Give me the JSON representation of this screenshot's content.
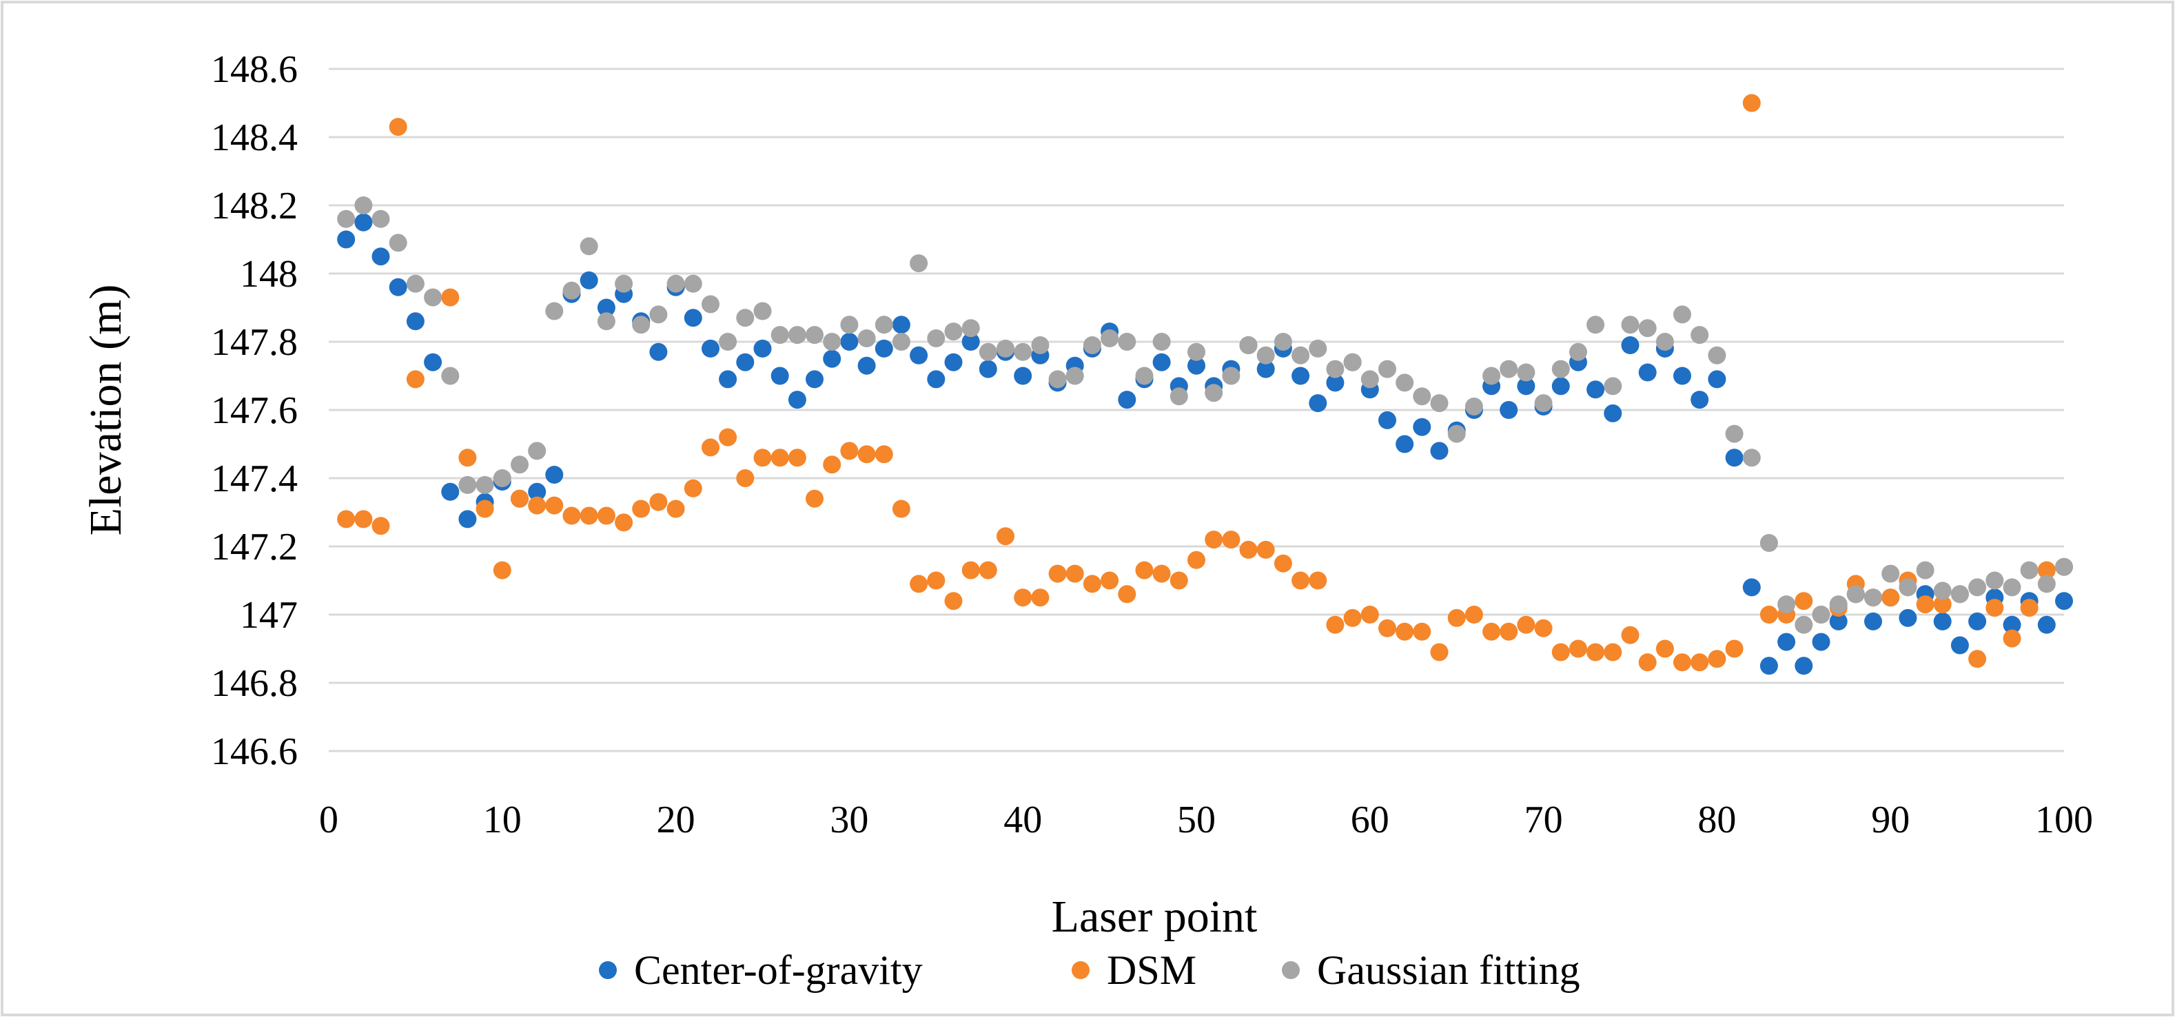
{
  "chart_data": {
    "type": "scatter",
    "title": "",
    "xlabel": "Laser point",
    "ylabel": "Elevation (m)",
    "xlim": [
      0,
      100
    ],
    "ylim": [
      146.6,
      148.6
    ],
    "xticks": [
      "0",
      "10",
      "20",
      "30",
      "40",
      "50",
      "60",
      "70",
      "80",
      "90",
      "100"
    ],
    "yticks": [
      "146.6",
      "146.8",
      "147",
      "147.2",
      "147.4",
      "147.6",
      "147.8",
      "148",
      "148.2",
      "148.4",
      "148.6"
    ],
    "grid": true,
    "legend_position": "bottom",
    "series": [
      {
        "name": "Center-of-gravity",
        "color": "#1f6fc4",
        "points": [
          [
            1,
            148.1
          ],
          [
            2,
            148.15
          ],
          [
            3,
            148.05
          ],
          [
            4,
            147.96
          ],
          [
            5,
            147.86
          ],
          [
            6,
            147.74
          ],
          [
            7,
            147.36
          ],
          [
            8,
            147.28
          ],
          [
            9,
            147.33
          ],
          [
            10,
            147.39
          ],
          [
            11,
            147.34
          ],
          [
            12,
            147.36
          ],
          [
            13,
            147.41
          ],
          [
            14,
            147.94
          ],
          [
            15,
            147.98
          ],
          [
            16,
            147.9
          ],
          [
            17,
            147.94
          ],
          [
            18,
            147.86
          ],
          [
            19,
            147.77
          ],
          [
            20,
            147.96
          ],
          [
            21,
            147.87
          ],
          [
            22,
            147.78
          ],
          [
            23,
            147.69
          ],
          [
            24,
            147.74
          ],
          [
            25,
            147.78
          ],
          [
            26,
            147.7
          ],
          [
            27,
            147.63
          ],
          [
            28,
            147.69
          ],
          [
            29,
            147.75
          ],
          [
            30,
            147.8
          ],
          [
            31,
            147.73
          ],
          [
            32,
            147.78
          ],
          [
            33,
            147.85
          ],
          [
            34,
            147.76
          ],
          [
            35,
            147.69
          ],
          [
            36,
            147.74
          ],
          [
            37,
            147.8
          ],
          [
            38,
            147.72
          ],
          [
            39,
            147.77
          ],
          [
            40,
            147.7
          ],
          [
            41,
            147.76
          ],
          [
            42,
            147.68
          ],
          [
            43,
            147.73
          ],
          [
            44,
            147.78
          ],
          [
            45,
            147.83
          ],
          [
            46,
            147.63
          ],
          [
            47,
            147.69
          ],
          [
            48,
            147.74
          ],
          [
            49,
            147.67
          ],
          [
            50,
            147.73
          ],
          [
            51,
            147.67
          ],
          [
            52,
            147.72
          ],
          [
            53,
            147.79
          ],
          [
            54,
            147.72
          ],
          [
            55,
            147.78
          ],
          [
            56,
            147.7
          ],
          [
            57,
            147.62
          ],
          [
            58,
            147.68
          ],
          [
            59,
            147.74
          ],
          [
            60,
            147.66
          ],
          [
            61,
            147.57
          ],
          [
            62,
            147.5
          ],
          [
            63,
            147.55
          ],
          [
            64,
            147.48
          ],
          [
            65,
            147.54
          ],
          [
            66,
            147.6
          ],
          [
            67,
            147.67
          ],
          [
            68,
            147.6
          ],
          [
            69,
            147.67
          ],
          [
            70,
            147.61
          ],
          [
            71,
            147.67
          ],
          [
            72,
            147.74
          ],
          [
            73,
            147.66
          ],
          [
            74,
            147.59
          ],
          [
            75,
            147.79
          ],
          [
            76,
            147.71
          ],
          [
            77,
            147.78
          ],
          [
            78,
            147.7
          ],
          [
            79,
            147.63
          ],
          [
            80,
            147.69
          ],
          [
            81,
            147.46
          ],
          [
            82,
            147.08
          ],
          [
            83,
            146.85
          ],
          [
            84,
            146.92
          ],
          [
            85,
            146.85
          ],
          [
            86,
            146.92
          ],
          [
            87,
            146.98
          ],
          [
            88,
            147.06
          ],
          [
            89,
            146.98
          ],
          [
            90,
            147.05
          ],
          [
            91,
            146.99
          ],
          [
            92,
            147.06
          ],
          [
            93,
            146.98
          ],
          [
            94,
            146.91
          ],
          [
            95,
            146.98
          ],
          [
            96,
            147.05
          ],
          [
            97,
            146.97
          ],
          [
            98,
            147.04
          ],
          [
            99,
            146.97
          ],
          [
            100,
            147.04
          ]
        ]
      },
      {
        "name": "DSM",
        "color": "#f5862a",
        "points": [
          [
            1,
            147.28
          ],
          [
            2,
            147.28
          ],
          [
            3,
            147.26
          ],
          [
            4,
            148.43
          ],
          [
            5,
            147.69
          ],
          [
            7,
            147.93
          ],
          [
            8,
            147.46
          ],
          [
            9,
            147.31
          ],
          [
            10,
            147.13
          ],
          [
            11,
            147.34
          ],
          [
            12,
            147.32
          ],
          [
            13,
            147.32
          ],
          [
            14,
            147.29
          ],
          [
            15,
            147.29
          ],
          [
            16,
            147.29
          ],
          [
            17,
            147.27
          ],
          [
            18,
            147.31
          ],
          [
            19,
            147.33
          ],
          [
            20,
            147.31
          ],
          [
            21,
            147.37
          ],
          [
            22,
            147.49
          ],
          [
            23,
            147.52
          ],
          [
            24,
            147.4
          ],
          [
            25,
            147.46
          ],
          [
            26,
            147.46
          ],
          [
            27,
            147.46
          ],
          [
            28,
            147.34
          ],
          [
            29,
            147.44
          ],
          [
            30,
            147.48
          ],
          [
            31,
            147.47
          ],
          [
            32,
            147.47
          ],
          [
            33,
            147.31
          ],
          [
            34,
            147.09
          ],
          [
            35,
            147.1
          ],
          [
            36,
            147.04
          ],
          [
            37,
            147.13
          ],
          [
            38,
            147.13
          ],
          [
            39,
            147.23
          ],
          [
            40,
            147.05
          ],
          [
            41,
            147.05
          ],
          [
            42,
            147.12
          ],
          [
            43,
            147.12
          ],
          [
            44,
            147.09
          ],
          [
            45,
            147.1
          ],
          [
            46,
            147.06
          ],
          [
            47,
            147.13
          ],
          [
            48,
            147.12
          ],
          [
            49,
            147.1
          ],
          [
            50,
            147.16
          ],
          [
            51,
            147.22
          ],
          [
            52,
            147.22
          ],
          [
            53,
            147.19
          ],
          [
            54,
            147.19
          ],
          [
            55,
            147.15
          ],
          [
            56,
            147.1
          ],
          [
            57,
            147.1
          ],
          [
            58,
            146.97
          ],
          [
            59,
            146.99
          ],
          [
            60,
            147.0
          ],
          [
            61,
            146.96
          ],
          [
            62,
            146.95
          ],
          [
            63,
            146.95
          ],
          [
            64,
            146.89
          ],
          [
            65,
            146.99
          ],
          [
            66,
            147.0
          ],
          [
            67,
            146.95
          ],
          [
            68,
            146.95
          ],
          [
            69,
            146.97
          ],
          [
            70,
            146.96
          ],
          [
            71,
            146.89
          ],
          [
            72,
            146.9
          ],
          [
            73,
            146.89
          ],
          [
            74,
            146.89
          ],
          [
            75,
            146.94
          ],
          [
            76,
            146.86
          ],
          [
            77,
            146.9
          ],
          [
            78,
            146.86
          ],
          [
            79,
            146.86
          ],
          [
            80,
            146.87
          ],
          [
            81,
            146.9
          ],
          [
            82,
            148.5
          ],
          [
            83,
            147.0
          ],
          [
            84,
            147.0
          ],
          [
            85,
            147.04
          ],
          [
            86,
            147.0
          ],
          [
            87,
            147.02
          ],
          [
            88,
            147.09
          ],
          [
            89,
            147.05
          ],
          [
            90,
            147.05
          ],
          [
            91,
            147.1
          ],
          [
            92,
            147.03
          ],
          [
            93,
            147.03
          ],
          [
            94,
            147.06
          ],
          [
            95,
            146.87
          ],
          [
            96,
            147.02
          ],
          [
            97,
            146.93
          ],
          [
            98,
            147.02
          ],
          [
            99,
            147.13
          ],
          [
            100,
            147.14
          ]
        ]
      },
      {
        "name": "Gaussian fitting",
        "color": "#a5a5a5",
        "points": [
          [
            1,
            148.16
          ],
          [
            2,
            148.2
          ],
          [
            3,
            148.16
          ],
          [
            4,
            148.09
          ],
          [
            5,
            147.97
          ],
          [
            6,
            147.93
          ],
          [
            7,
            147.7
          ],
          [
            8,
            147.38
          ],
          [
            9,
            147.38
          ],
          [
            10,
            147.4
          ],
          [
            11,
            147.44
          ],
          [
            12,
            147.48
          ],
          [
            13,
            147.89
          ],
          [
            14,
            147.95
          ],
          [
            15,
            148.08
          ],
          [
            16,
            147.86
          ],
          [
            17,
            147.97
          ],
          [
            18,
            147.85
          ],
          [
            19,
            147.88
          ],
          [
            20,
            147.97
          ],
          [
            21,
            147.97
          ],
          [
            22,
            147.91
          ],
          [
            23,
            147.8
          ],
          [
            24,
            147.87
          ],
          [
            25,
            147.89
          ],
          [
            26,
            147.82
          ],
          [
            27,
            147.82
          ],
          [
            28,
            147.82
          ],
          [
            29,
            147.8
          ],
          [
            30,
            147.85
          ],
          [
            31,
            147.81
          ],
          [
            32,
            147.85
          ],
          [
            33,
            147.8
          ],
          [
            34,
            148.03
          ],
          [
            35,
            147.81
          ],
          [
            36,
            147.83
          ],
          [
            37,
            147.84
          ],
          [
            38,
            147.77
          ],
          [
            39,
            147.78
          ],
          [
            40,
            147.77
          ],
          [
            41,
            147.79
          ],
          [
            42,
            147.69
          ],
          [
            43,
            147.7
          ],
          [
            44,
            147.79
          ],
          [
            45,
            147.81
          ],
          [
            46,
            147.8
          ],
          [
            47,
            147.7
          ],
          [
            48,
            147.8
          ],
          [
            49,
            147.64
          ],
          [
            50,
            147.77
          ],
          [
            51,
            147.65
          ],
          [
            52,
            147.7
          ],
          [
            53,
            147.79
          ],
          [
            54,
            147.76
          ],
          [
            55,
            147.8
          ],
          [
            56,
            147.76
          ],
          [
            57,
            147.78
          ],
          [
            58,
            147.72
          ],
          [
            59,
            147.74
          ],
          [
            60,
            147.69
          ],
          [
            61,
            147.72
          ],
          [
            62,
            147.68
          ],
          [
            63,
            147.64
          ],
          [
            64,
            147.62
          ],
          [
            65,
            147.53
          ],
          [
            66,
            147.61
          ],
          [
            67,
            147.7
          ],
          [
            68,
            147.72
          ],
          [
            69,
            147.71
          ],
          [
            70,
            147.62
          ],
          [
            71,
            147.72
          ],
          [
            72,
            147.77
          ],
          [
            73,
            147.85
          ],
          [
            74,
            147.67
          ],
          [
            75,
            147.85
          ],
          [
            76,
            147.84
          ],
          [
            77,
            147.8
          ],
          [
            78,
            147.88
          ],
          [
            79,
            147.82
          ],
          [
            80,
            147.76
          ],
          [
            81,
            147.53
          ],
          [
            82,
            147.46
          ],
          [
            83,
            147.21
          ],
          [
            84,
            147.03
          ],
          [
            85,
            146.97
          ],
          [
            86,
            147.0
          ],
          [
            87,
            147.03
          ],
          [
            88,
            147.06
          ],
          [
            89,
            147.05
          ],
          [
            90,
            147.12
          ],
          [
            91,
            147.08
          ],
          [
            92,
            147.13
          ],
          [
            93,
            147.07
          ],
          [
            94,
            147.06
          ],
          [
            95,
            147.08
          ],
          [
            96,
            147.1
          ],
          [
            97,
            147.08
          ],
          [
            98,
            147.13
          ],
          [
            99,
            147.09
          ],
          [
            100,
            147.14
          ]
        ]
      }
    ]
  }
}
